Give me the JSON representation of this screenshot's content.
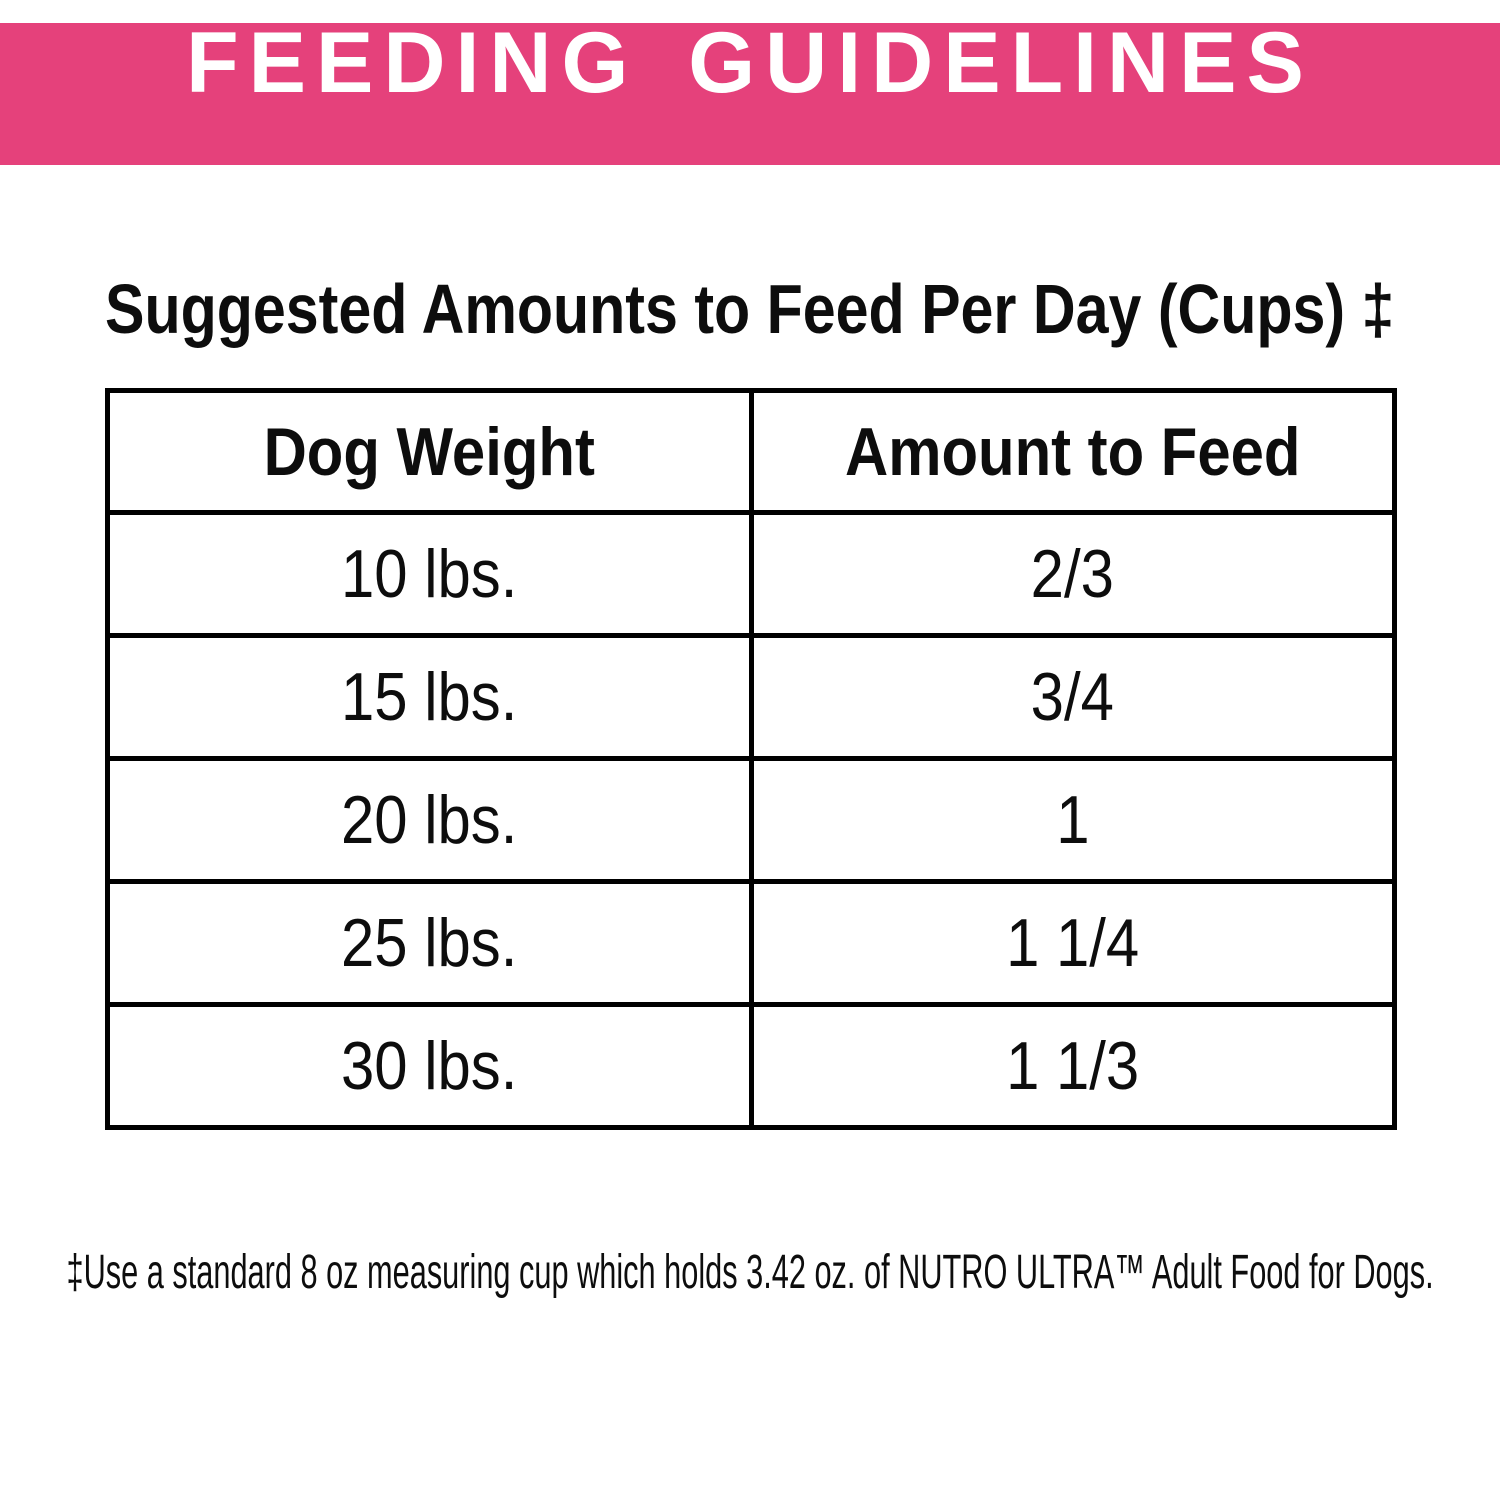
{
  "banner": {
    "title": "FEEDING GUIDELINES",
    "background_color": "#E5417B",
    "text_color": "#FFFFFF"
  },
  "section_title": "Suggested Amounts to Feed Per Day (Cups) ‡",
  "table": {
    "headers": {
      "weight": "Dog Weight",
      "amount": "Amount to Feed"
    },
    "rows": [
      {
        "weight": "10 lbs.",
        "amount": "2/3"
      },
      {
        "weight": "15 lbs.",
        "amount": "3/4"
      },
      {
        "weight": "20 lbs.",
        "amount": "1"
      },
      {
        "weight": "25 lbs.",
        "amount": "1 1/4"
      },
      {
        "weight": "30 lbs.",
        "amount": "1 1/3"
      }
    ]
  },
  "footnote": "‡Use a standard 8 oz measuring cup which holds 3.42 oz. of NUTRO ULTRA™ Adult Food for Dogs.",
  "colors": {
    "border": "#000000",
    "text": "#0D0D0D",
    "page_background": "#FFFFFF"
  }
}
